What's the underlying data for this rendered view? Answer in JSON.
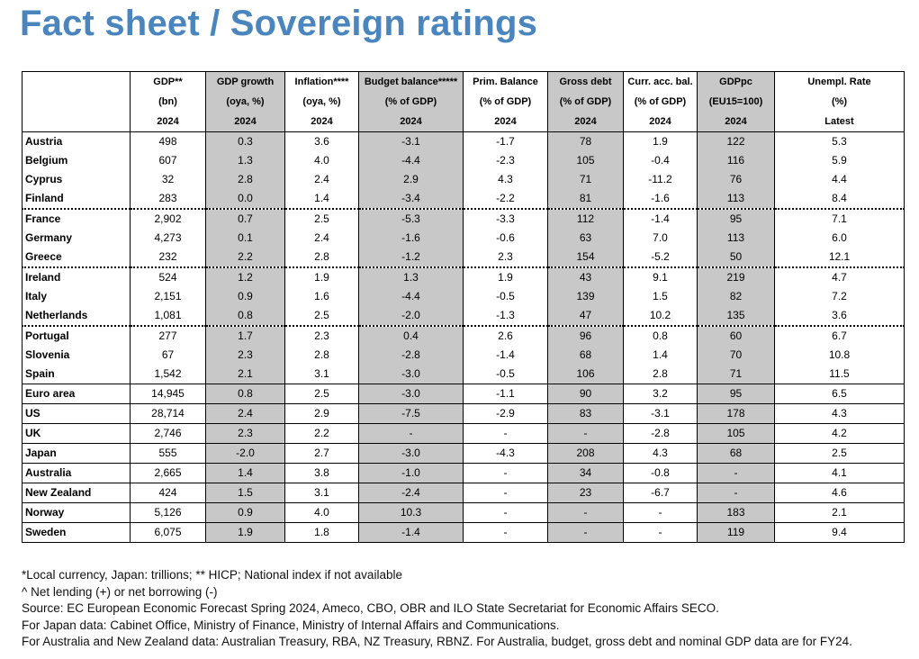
{
  "title": "Fact sheet / Sovereign ratings",
  "table": {
    "headers": [
      [
        "",
        "GDP**",
        "GDP growth",
        "Inflation****",
        "Budget balance*****",
        "Prim. Balance",
        "Gross debt",
        "Curr. acc. bal.",
        "GDPpc",
        "Unempl. Rate"
      ],
      [
        "",
        "(bn)",
        "(oya, %)",
        "(oya, %)",
        "(% of GDP)",
        "(% of GDP)",
        "(% of GDP)",
        "(% of GDP)",
        "(EU15=100)",
        "(%)"
      ],
      [
        "",
        "2024",
        "2024",
        "2024",
        "2024",
        "2024",
        "2024",
        "2024",
        "2024",
        "Latest"
      ]
    ],
    "rows": [
      [
        "Austria",
        "498",
        "0.3",
        "3.6",
        "-3.1",
        "-1.7",
        "78",
        "1.9",
        "122",
        "5.3"
      ],
      [
        "Belgium",
        "607",
        "1.3",
        "4.0",
        "-4.4",
        "-2.3",
        "105",
        "-0.4",
        "116",
        "5.9"
      ],
      [
        "Cyprus",
        "32",
        "2.8",
        "2.4",
        "2.9",
        "4.3",
        "71",
        "-11.2",
        "76",
        "4.4"
      ],
      [
        "Finland",
        "283",
        "0.0",
        "1.4",
        "-3.4",
        "-2.2",
        "81",
        "-1.6",
        "113",
        "8.4"
      ],
      [
        "France",
        "2,902",
        "0.7",
        "2.5",
        "-5.3",
        "-3.3",
        "112",
        "-1.4",
        "95",
        "7.1"
      ],
      [
        "Germany",
        "4,273",
        "0.1",
        "2.4",
        "-1.6",
        "-0.6",
        "63",
        "7.0",
        "113",
        "6.0"
      ],
      [
        "Greece",
        "232",
        "2.2",
        "2.8",
        "-1.2",
        "2.3",
        "154",
        "-5.2",
        "50",
        "12.1"
      ],
      [
        "Ireland",
        "524",
        "1.2",
        "1.9",
        "1.3",
        "1.9",
        "43",
        "9.1",
        "219",
        "4.7"
      ],
      [
        "Italy",
        "2,151",
        "0.9",
        "1.6",
        "-4.4",
        "-0.5",
        "139",
        "1.5",
        "82",
        "7.2"
      ],
      [
        "Netherlands",
        "1,081",
        "0.8",
        "2.5",
        "-2.0",
        "-1.3",
        "47",
        "10.2",
        "135",
        "3.6"
      ],
      [
        "Portugal",
        "277",
        "1.7",
        "2.3",
        "0.4",
        "2.6",
        "96",
        "0.8",
        "60",
        "6.7"
      ],
      [
        "Slovenia",
        "67",
        "2.3",
        "2.8",
        "-2.8",
        "-1.4",
        "68",
        "1.4",
        "70",
        "10.8"
      ],
      [
        "Spain",
        "1,542",
        "2.1",
        "3.1",
        "-3.0",
        "-0.5",
        "106",
        "2.8",
        "71",
        "11.5"
      ],
      [
        "Euro area",
        "14,945",
        "0.8",
        "2.5",
        "-3.0",
        "-1.1",
        "90",
        "3.2",
        "95",
        "6.5"
      ],
      [
        "US",
        "28,714",
        "2.4",
        "2.9",
        "-7.5",
        "-2.9",
        "83",
        "-3.1",
        "178",
        "4.3"
      ],
      [
        "UK",
        "2,746",
        "2.3",
        "2.2",
        "-",
        "-",
        "-",
        "-2.8",
        "105",
        "4.2"
      ],
      [
        "Japan",
        "555",
        "-2.0",
        "2.7",
        "-3.0",
        "-4.3",
        "208",
        "4.3",
        "68",
        "2.5"
      ],
      [
        "Australia",
        "2,665",
        "1.4",
        "3.8",
        "-1.0",
        "-",
        "34",
        "-0.8",
        "-",
        "4.1"
      ],
      [
        "New Zealand",
        "424",
        "1.5",
        "3.1",
        "-2.4",
        "-",
        "23",
        "-6.7",
        "-",
        "4.6"
      ],
      [
        "Norway",
        "5,126",
        "0.9",
        "4.0",
        "10.3",
        "-",
        "-",
        "-",
        "183",
        "2.1"
      ],
      [
        "Sweden",
        "6,075",
        "1.9",
        "1.8",
        "-1.4",
        "-",
        "-",
        "-",
        "119",
        "9.4"
      ]
    ]
  },
  "notes": [
    "*Local currency, Japan: trillions; ** HICP; National index if not available",
    "^ Net lending (+) or net borrowing (-)",
    "Source: EC European Economic Forecast Spring 2024, Ameco, CBO, OBR and ILO State Secretariat for Economic Affairs SECO.",
    "For Japan data: Cabinet Office, Ministry of Finance, Ministry of Internal Affairs and Communications.",
    "For Australia and New Zealand data: Australian Treasury, RBA, NZ Treasury, RBNZ. For Australia, budget, gross debt and nominal GDP data are for FY24."
  ],
  "colors": {
    "title": "#4a86bd",
    "shade": "#c8c8c8"
  }
}
